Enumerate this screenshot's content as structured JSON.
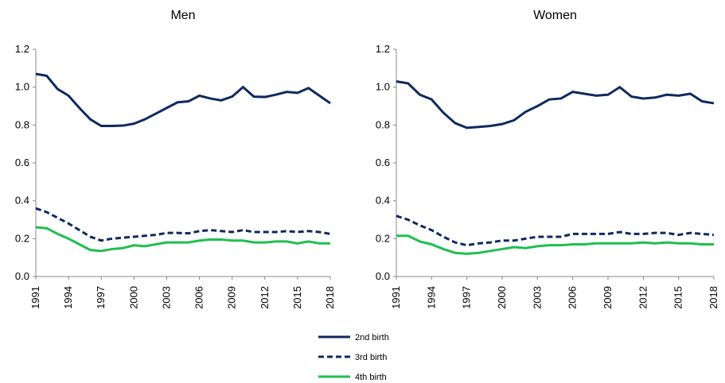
{
  "chart_data": [
    {
      "type": "line",
      "title": "Men",
      "x": [
        1991,
        1992,
        1993,
        1994,
        1995,
        1996,
        1997,
        1998,
        1999,
        2000,
        2001,
        2002,
        2003,
        2004,
        2005,
        2006,
        2007,
        2008,
        2009,
        2010,
        2011,
        2012,
        2013,
        2014,
        2015,
        2016,
        2017,
        2018
      ],
      "xlim": [
        1991,
        2018
      ],
      "xticks": [
        1991,
        1994,
        1997,
        2000,
        2003,
        2006,
        2009,
        2012,
        2015,
        2018
      ],
      "ylim": [
        0,
        1.2
      ],
      "yticks": [
        {
          "value": 0,
          "label": "0.0"
        },
        0.2,
        0.4,
        0.6,
        0.8,
        {
          "value": 1,
          "label": "1.0"
        },
        1.2
      ],
      "series": [
        {
          "name": "2nd birth",
          "color": "#0f2a5e",
          "dash": false,
          "values": [
            1.07,
            1.06,
            0.99,
            0.955,
            0.89,
            0.83,
            0.795,
            0.795,
            0.797,
            0.807,
            0.83,
            0.86,
            0.89,
            0.92,
            0.925,
            0.955,
            0.94,
            0.93,
            0.95,
            1.0,
            0.95,
            0.948,
            0.96,
            0.975,
            0.97,
            0.995,
            0.955,
            0.915
          ]
        },
        {
          "name": "3rd birth",
          "color": "#0f2a5e",
          "dash": true,
          "values": [
            0.36,
            0.34,
            0.31,
            0.28,
            0.245,
            0.21,
            0.19,
            0.2,
            0.205,
            0.21,
            0.215,
            0.22,
            0.23,
            0.23,
            0.228,
            0.24,
            0.245,
            0.24,
            0.235,
            0.245,
            0.235,
            0.235,
            0.235,
            0.24,
            0.235,
            0.24,
            0.235,
            0.225
          ]
        },
        {
          "name": "4th birth",
          "color": "#1fbf4f",
          "dash": false,
          "values": [
            0.26,
            0.255,
            0.225,
            0.2,
            0.17,
            0.14,
            0.135,
            0.145,
            0.15,
            0.165,
            0.16,
            0.17,
            0.18,
            0.18,
            0.18,
            0.19,
            0.195,
            0.195,
            0.19,
            0.19,
            0.18,
            0.18,
            0.185,
            0.185,
            0.175,
            0.185,
            0.175,
            0.175
          ]
        }
      ]
    },
    {
      "type": "line",
      "title": "Women",
      "x": [
        1991,
        1992,
        1993,
        1994,
        1995,
        1996,
        1997,
        1998,
        1999,
        2000,
        2001,
        2002,
        2003,
        2004,
        2005,
        2006,
        2007,
        2008,
        2009,
        2010,
        2011,
        2012,
        2013,
        2014,
        2015,
        2016,
        2017,
        2018
      ],
      "xlim": [
        1991,
        2018
      ],
      "xticks": [
        1991,
        1994,
        1997,
        2000,
        2003,
        2006,
        2009,
        2012,
        2015,
        2018
      ],
      "ylim": [
        0,
        1.2
      ],
      "yticks": [
        {
          "value": 0,
          "label": "0.0"
        },
        0.2,
        0.4,
        0.6,
        0.8,
        {
          "value": 1,
          "label": "1.0"
        },
        1.2
      ],
      "series": [
        {
          "name": "2nd birth",
          "color": "#0f2a5e",
          "dash": false,
          "values": [
            1.03,
            1.02,
            0.96,
            0.935,
            0.865,
            0.81,
            0.785,
            0.79,
            0.795,
            0.805,
            0.825,
            0.87,
            0.9,
            0.935,
            0.94,
            0.975,
            0.965,
            0.955,
            0.96,
            1.0,
            0.95,
            0.94,
            0.945,
            0.96,
            0.955,
            0.965,
            0.925,
            0.915
          ]
        },
        {
          "name": "3rd birth",
          "color": "#0f2a5e",
          "dash": true,
          "values": [
            0.32,
            0.3,
            0.27,
            0.245,
            0.21,
            0.18,
            0.165,
            0.175,
            0.18,
            0.19,
            0.19,
            0.2,
            0.21,
            0.21,
            0.21,
            0.225,
            0.225,
            0.225,
            0.225,
            0.235,
            0.225,
            0.225,
            0.23,
            0.23,
            0.22,
            0.23,
            0.225,
            0.22
          ]
        },
        {
          "name": "4th birth",
          "color": "#1fbf4f",
          "dash": false,
          "values": [
            0.215,
            0.215,
            0.185,
            0.17,
            0.145,
            0.125,
            0.12,
            0.125,
            0.135,
            0.145,
            0.155,
            0.15,
            0.16,
            0.165,
            0.165,
            0.17,
            0.17,
            0.175,
            0.175,
            0.175,
            0.175,
            0.18,
            0.175,
            0.18,
            0.175,
            0.175,
            0.17,
            0.17
          ]
        }
      ]
    }
  ]
}
